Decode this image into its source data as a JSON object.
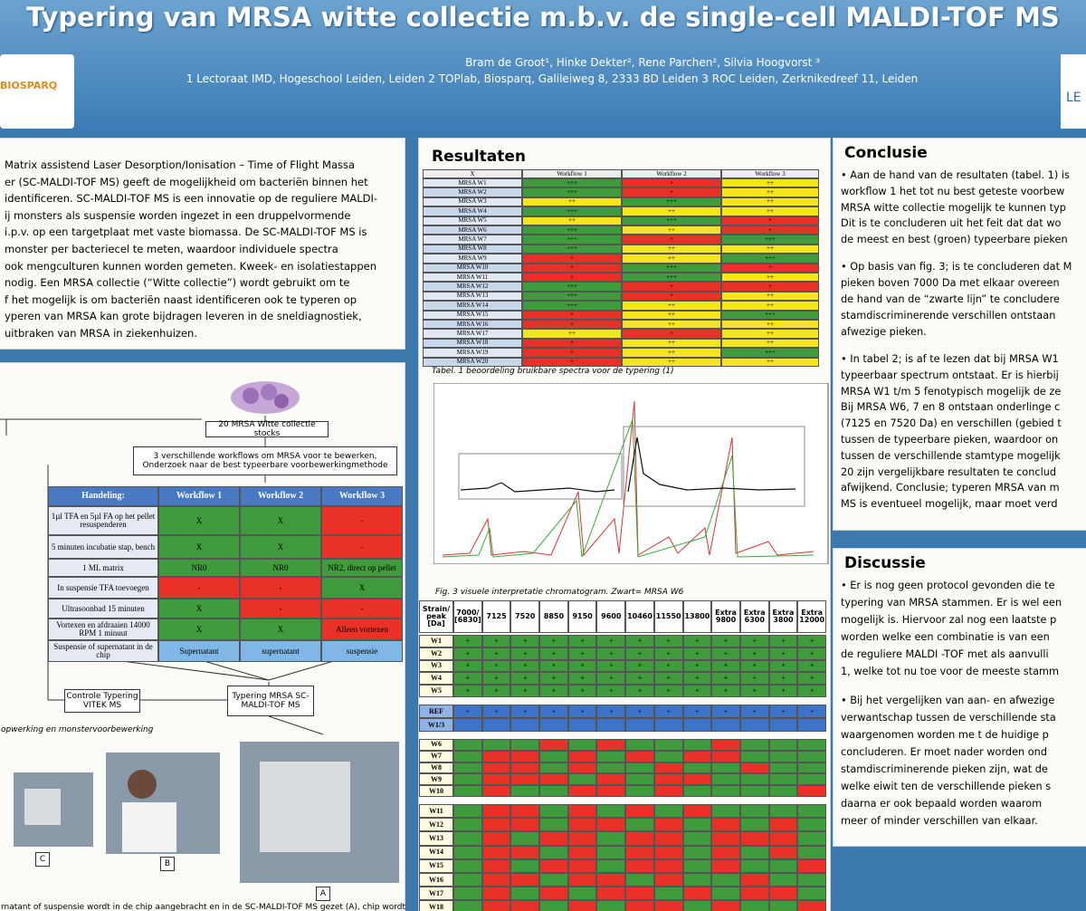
{
  "palette": {
    "g": "#3f9b3c",
    "r": "#ea3128",
    "y": "#f4e51c",
    "b": "#3d74c9",
    "l": "#7fb8e6"
  },
  "header": {
    "title": "Typering van MRSA witte collectie m.b.v. de single-cell MALDI-TOF MS",
    "authors": "Bram de Groot¹,  Hinke Dekter², Rene Parchen², Silvia Hoogvorst ³",
    "affiliation": "1 Lectoraat IMD, Hogeschool Leiden, Leiden 2 TOPlab, Biosparq, Galileiweg 8, 2333 BD Leiden 3 ROC Leiden, Zerknikedreef 11, Leiden",
    "logo_left": "BIOSPARQ",
    "logo_right": "LE"
  },
  "intro": {
    "lines": [
      "Matrix assistend Laser Desorption/Ionisation – Time of Flight Massa",
      "er (SC-MALDI-TOF MS) geeft de mogelijkheid om bacteriën binnen het",
      "identificeren. SC-MALDI-TOF MS is een innovatie op de reguliere MALDI-",
      "ij monsters als suspensie worden ingezet in een druppelvormende",
      "i.p.v. op een targetplaat met vaste biomassa. De SC-MALDI-TOF MS is",
      "monster per bacteriecel te meten, waardoor individuele spectra",
      "ook mengculturen kunnen worden gemeten. Kweek- en isolatiestappen",
      "nodig. Een MRSA collectie (“Witte collectie”) wordt gebruikt om te",
      "f het mogelijk is om bacteriën naast identificeren ook te typeren op",
      "yperen van MRSA kan grote bijdragen leveren in de sneldiagnostiek,",
      "uitbraken van MRSA in ziekenhuizen."
    ]
  },
  "diagram": {
    "stocks": "20 MRSA  Witte collectie stocks",
    "workflows": "3 verschillende workflows om MRSA voor te bewerken, Onderzoek naar de best typeerbare voorbewerkingmethode",
    "table": {
      "columns": [
        "Handeling:",
        "Workflow 1",
        "Workflow 2",
        "Workflow 3"
      ],
      "rows": [
        {
          "step": "1µl TFA en 5µl FA op het pellet resuspenderen",
          "values": [
            "X",
            "X",
            "-"
          ],
          "colors": "ggr"
        },
        {
          "step": "5 minuten incubatie stap, bench",
          "values": [
            "X",
            "X",
            "-"
          ],
          "colors": "ggr"
        },
        {
          "step": "1 ML matrix",
          "values": [
            "NR0",
            "NR0",
            "NR2, direct op pellet"
          ],
          "colors": "ggg"
        },
        {
          "step": "In suspensie TFA toevoegen",
          "values": [
            "-",
            "-",
            "X"
          ],
          "colors": "rrg"
        },
        {
          "step": "Ultrasoonbad 15 minuten",
          "values": [
            "X",
            "-",
            "-"
          ],
          "colors": "grr"
        },
        {
          "step": "Vortexen en afdraaien 14000 RPM 1 minuut",
          "values": [
            "X",
            "X",
            "Alleen vortexen"
          ],
          "colors": "ggr"
        },
        {
          "step": "Suspensie of supernatant in de chip",
          "values": [
            "Supernatant",
            "supernatant",
            "suspensie"
          ],
          "colors": "lll"
        }
      ]
    },
    "control": "Controle Typering VITEK MS",
    "typing": "Typering MRSA SC-MALDI-TOF MS",
    "caption": "opwerking en monstervoorbewerking",
    "photo_labels": [
      "C",
      "B",
      "A"
    ],
    "bottom_caption": "rnatant of suspensie wordt in de chip aangebracht en in de SC-MALDI-TOF MS gezet (A), chip wordt"
  },
  "results": {
    "title": "Resultaten",
    "columns": [
      "X",
      "Workflow 1",
      "Workflow 2",
      "Workflow 3"
    ],
    "rows": [
      {
        "strain": "MRSA W1",
        "values": [
          "+++",
          "+",
          "++"
        ],
        "colors": "gry"
      },
      {
        "strain": "MRSA W2",
        "values": [
          "+++",
          "+",
          "++"
        ],
        "colors": "gry"
      },
      {
        "strain": "MRSA W3",
        "values": [
          "++",
          "+++",
          "++"
        ],
        "colors": "ygy"
      },
      {
        "strain": "MRSA W4",
        "values": [
          "+++",
          "++",
          "++"
        ],
        "colors": "gyy"
      },
      {
        "strain": "MRSA W5",
        "values": [
          "++",
          "+++",
          "+"
        ],
        "colors": "ygr"
      },
      {
        "strain": "MRSA W6",
        "values": [
          "+++",
          "++",
          "+"
        ],
        "colors": "gyr"
      },
      {
        "strain": "MRSA W7",
        "values": [
          "+++",
          "+",
          "+++"
        ],
        "colors": "grg"
      },
      {
        "strain": "MRSA W8",
        "values": [
          "+++",
          "++",
          "++"
        ],
        "colors": "gyy"
      },
      {
        "strain": "MRSA W9",
        "values": [
          "+",
          "++",
          "+++"
        ],
        "colors": "ryg"
      },
      {
        "strain": "MRSA W10",
        "values": [
          "+",
          "+++",
          "+"
        ],
        "colors": "rgr"
      },
      {
        "strain": "MRSA W11",
        "values": [
          "+",
          "+++",
          "++"
        ],
        "colors": "rgy"
      },
      {
        "strain": "MRSA W12",
        "values": [
          "+++",
          "+",
          "+"
        ],
        "colors": "grr"
      },
      {
        "strain": "MRSA W13",
        "values": [
          "+++",
          "+",
          "++"
        ],
        "colors": "gry"
      },
      {
        "strain": "MRSA W14",
        "values": [
          "+++",
          "++",
          "++"
        ],
        "colors": "gyy"
      },
      {
        "strain": "MRSA W15",
        "values": [
          "+",
          "++",
          "+++"
        ],
        "colors": "ryg"
      },
      {
        "strain": "MRSA W16",
        "values": [
          "+",
          "++",
          "++"
        ],
        "colors": "ryy"
      },
      {
        "strain": "MRSA W17",
        "values": [
          "++",
          "+",
          "++"
        ],
        "colors": "yry"
      },
      {
        "strain": "MRSA W18",
        "values": [
          "+",
          "++",
          "++"
        ],
        "colors": "ryy"
      },
      {
        "strain": "MRSA W19",
        "values": [
          "+",
          "++",
          "+++"
        ],
        "colors": "ryg"
      },
      {
        "strain": "MRSA W20",
        "values": [
          "+",
          "++",
          "++"
        ],
        "colors": "ryy"
      }
    ],
    "caption": "Tabel. 1 beoordeling bruikbare spectra voor de typering  (1)",
    "fig_caption": "Fig. 3 visuele interpretatie chromatogram. Zwart= MRSA W6"
  },
  "peak_table": {
    "columns": [
      "Strain/ peak [Da]",
      "7000/ [6830]",
      "7125",
      "7520",
      "8850",
      "9150",
      "9600",
      "10460",
      "11550",
      "13800",
      "Extra 9800",
      "Extra 6300",
      "Extra 3800",
      "Extra 12000"
    ],
    "groups": [
      [
        {
          "label": "W1",
          "colors": "ggggggggggggg",
          "cell_text": "+"
        },
        {
          "label": "W2",
          "colors": "ggggggggggggg",
          "cell_text": "+"
        },
        {
          "label": "W3",
          "colors": "ggggggggggggg",
          "cell_text": "+"
        },
        {
          "label": "W4",
          "colors": "ggggggggggggg",
          "cell_text": "+"
        },
        {
          "label": "W5",
          "colors": "ggggggggggggg",
          "cell_text": "+"
        }
      ],
      [
        {
          "label": "REF",
          "colors": "bbbbbbbbbbbbb",
          "cell_text": "+"
        },
        {
          "label": "W1/3",
          "colors": "bbbbbbbbbbbbb"
        }
      ],
      [
        {
          "label": "W6",
          "colors": "gggrgrgggrggg"
        },
        {
          "label": "W7",
          "colors": "grrgrgrgrrggg"
        },
        {
          "label": "W8",
          "colors": "grrgrggrggrgg"
        },
        {
          "label": "W9",
          "colors": "grrrgrgrrgggg"
        },
        {
          "label": "W10",
          "colors": "grggrrgrggggr"
        }
      ],
      [
        {
          "label": "W11",
          "colors": "grrgrgrgrgggg"
        },
        {
          "label": "W12",
          "colors": "grrgrrgrgrgrg"
        },
        {
          "label": "W13",
          "colors": "grgrrgrrgrrrg"
        },
        {
          "label": "W14",
          "colors": "grrgrgrrgrgrg"
        },
        {
          "label": "W15",
          "colors": "grgrrgrrgrggr"
        },
        {
          "label": "W16",
          "colors": "grrgrrgrggrgg"
        },
        {
          "label": "W17",
          "colors": "grgrgrrgrgrrg"
        },
        {
          "label": "W18",
          "colors": "grrgrgrrgrggr"
        }
      ]
    ]
  },
  "conclusion": {
    "title": "Conclusie",
    "paragraphs": [
      [
        "• Aan de hand van de resultaten  (tabel. 1) is",
        "workflow 1 het tot nu best geteste voorbew",
        "MRSA witte collectie mogelijk te kunnen typ",
        "Dit is te concluderen uit het feit dat dat wo",
        "de meest en best (groen) typeerbare pieken"
      ],
      [
        "• Op basis van fig. 3; is te concluderen dat M",
        "pieken boven 7000 Da met elkaar overeen",
        "de hand van de “zwarte lijn” te concludere",
        "stamdiscriminerende verschillen ontstaan",
        "afwezige pieken."
      ],
      [
        "• In tabel 2; is af te lezen dat bij MRSA W1",
        "typeerbaar spectrum ontstaat. Er is  hierbij",
        "MRSA W1 t/m 5 fenotypisch mogelijk de ze",
        "Bij MRSA W6, 7 en 8 ontstaan onderlinge c",
        "(7125 en 7520 Da) en verschillen (gebied t",
        "tussen de typeerbare pieken, waardoor on",
        "tussen de verschillende stamtype mogelijk",
        "20 zijn vergelijkbare resultaten  te conclud",
        "afwijkend. Conclusie; typeren MRSA van m",
        "MS is eventueel mogelijk, maar moet verd"
      ]
    ]
  },
  "discussion": {
    "title": "Discussie",
    "paragraphs": [
      [
        "• Er is nog geen protocol gevonden die  te",
        "typering van MRSA stammen. Er is wel een",
        "mogelijk is. Hiervoor zal nog een laatste p",
        "worden welke een combinatie is van een",
        "de reguliere MALDI -TOF met als  aanvulli",
        "1, welke  tot nu toe voor de meeste stamm"
      ],
      [
        "• Bij het vergelijken van aan- en afwezige",
        "verwantschap tussen de verschillende sta",
        "waargenomen worden me t de huidige p",
        "concluderen. Er moet  nader worden ond",
        "stamdiscriminerende pieken  zijn, wat de",
        "welke eiwit ten de verschillende pieken s",
        "daarna  er ook bepaald worden waarom",
        "meer of minder verschillen van elkaar."
      ]
    ]
  }
}
